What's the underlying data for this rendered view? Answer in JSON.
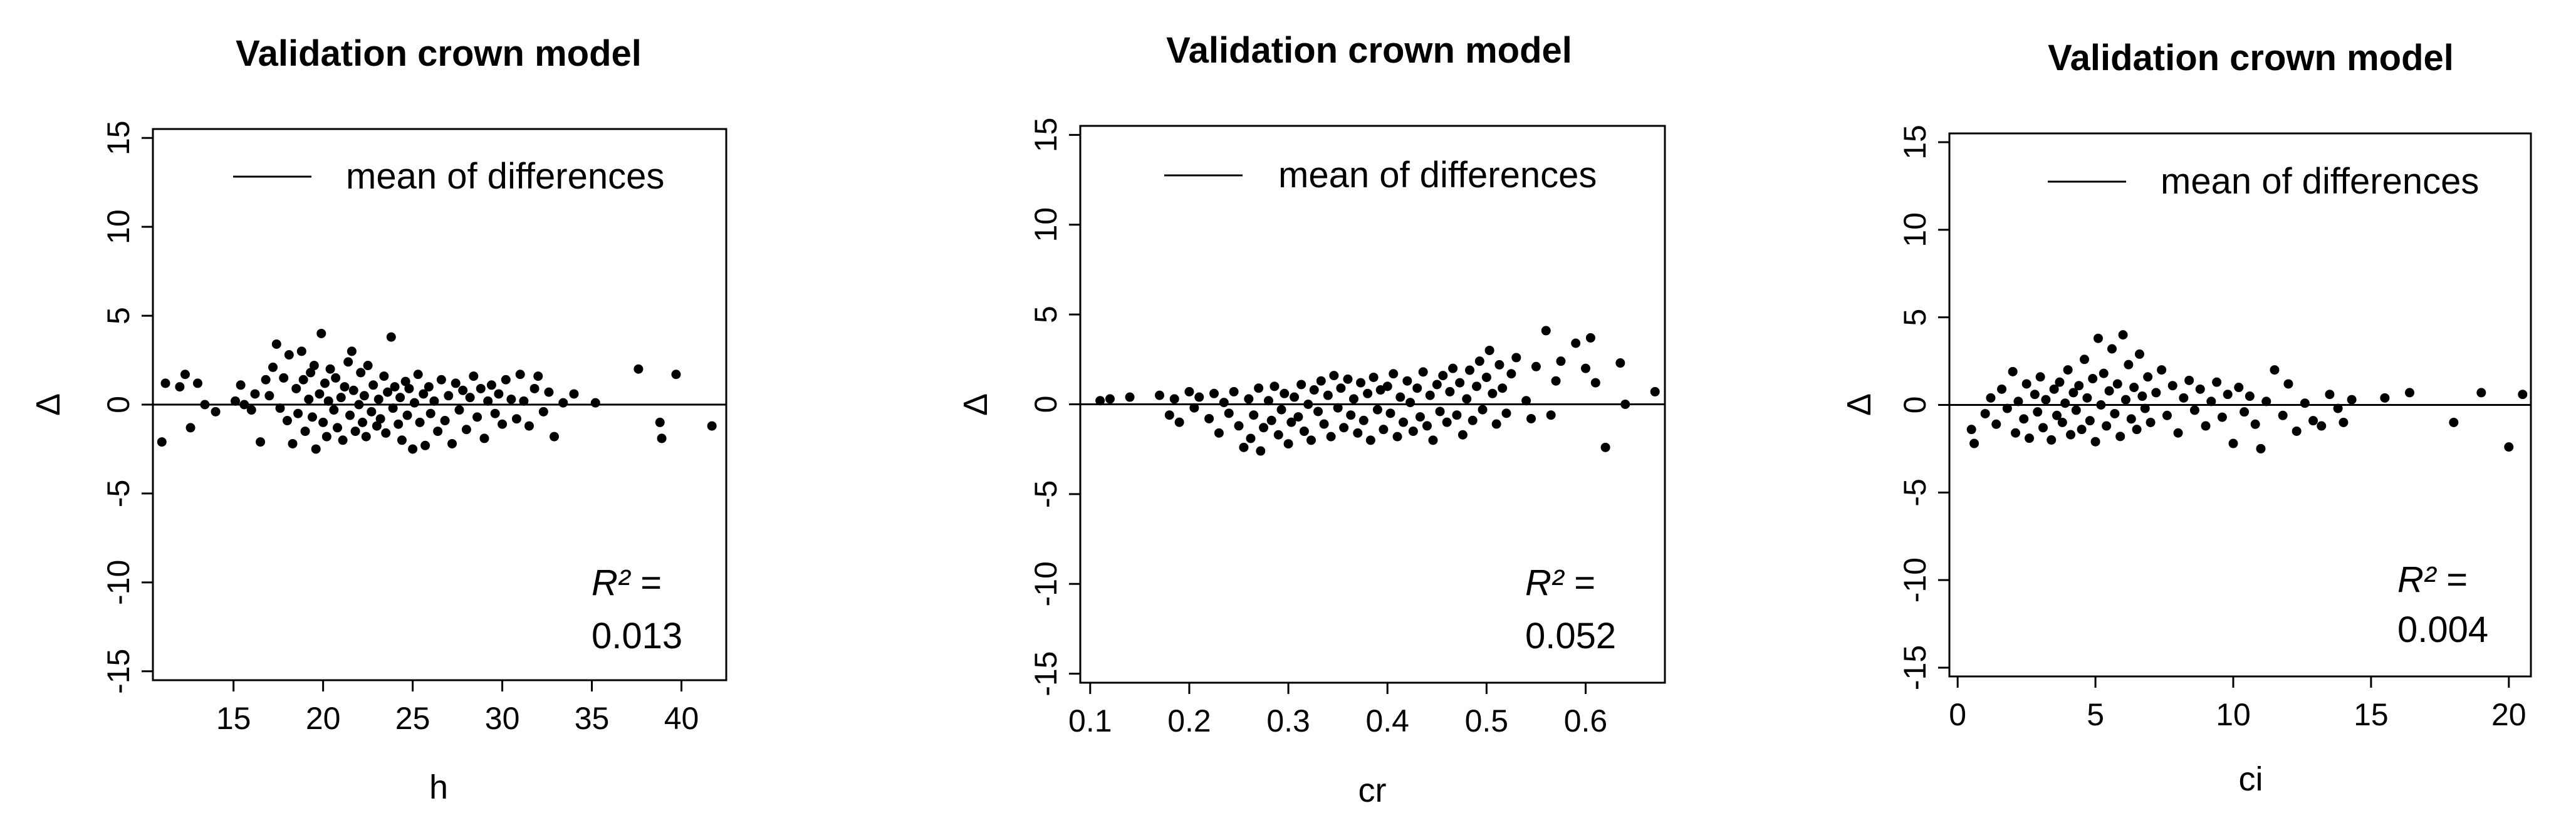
{
  "figure": {
    "ylabel_symbol": "Δ"
  },
  "chart_data": [
    {
      "type": "scatter",
      "title": "Validation crown model",
      "xlabel": "h",
      "ylabel": "Δ",
      "xlim": [
        10.5,
        42.5
      ],
      "ylim": [
        -15.5,
        15.5
      ],
      "xticks": [
        "15",
        "20",
        "25",
        "30",
        "35",
        "40"
      ],
      "yticks": [
        "-15",
        "-10",
        "-5",
        "0",
        "5",
        "10",
        "15"
      ],
      "legend": {
        "label": "mean of differences",
        "position": "top-right"
      },
      "mean_of_differences": 0,
      "r2_label": "R² =",
      "r2_value": "0.013",
      "points": [
        [
          11.2,
          1.2
        ],
        [
          11.0,
          -2.1
        ],
        [
          12.0,
          1.0
        ],
        [
          12.3,
          1.7
        ],
        [
          12.6,
          -1.3
        ],
        [
          13.0,
          1.2
        ],
        [
          13.4,
          0.0
        ],
        [
          14.0,
          -0.4
        ],
        [
          15.1,
          0.2
        ],
        [
          15.4,
          1.1
        ],
        [
          15.6,
          0.0
        ],
        [
          16.0,
          -0.3
        ],
        [
          16.2,
          0.6
        ],
        [
          16.5,
          -2.1
        ],
        [
          16.8,
          1.4
        ],
        [
          17.0,
          0.5
        ],
        [
          17.2,
          2.1
        ],
        [
          17.4,
          3.4
        ],
        [
          17.6,
          -0.2
        ],
        [
          17.8,
          1.5
        ],
        [
          18.0,
          -0.9
        ],
        [
          18.1,
          2.8
        ],
        [
          18.3,
          -2.2
        ],
        [
          18.5,
          0.9
        ],
        [
          18.6,
          -0.5
        ],
        [
          18.8,
          3.0
        ],
        [
          18.9,
          1.4
        ],
        [
          19.0,
          -1.5
        ],
        [
          19.2,
          0.3
        ],
        [
          19.3,
          1.8
        ],
        [
          19.4,
          -0.7
        ],
        [
          19.5,
          2.2
        ],
        [
          19.6,
          -2.5
        ],
        [
          19.8,
          0.6
        ],
        [
          19.9,
          4.0
        ],
        [
          20.0,
          -1.0
        ],
        [
          20.1,
          1.2
        ],
        [
          20.2,
          -1.8
        ],
        [
          20.3,
          0.2
        ],
        [
          20.4,
          2.0
        ],
        [
          20.6,
          -0.3
        ],
        [
          20.7,
          1.5
        ],
        [
          20.8,
          -1.3
        ],
        [
          21.0,
          0.4
        ],
        [
          21.1,
          -2.0
        ],
        [
          21.2,
          1.0
        ],
        [
          21.4,
          2.4
        ],
        [
          21.5,
          -0.6
        ],
        [
          21.6,
          3.0
        ],
        [
          21.7,
          0.8
        ],
        [
          21.8,
          -1.5
        ],
        [
          22.0,
          0.0
        ],
        [
          22.1,
          1.8
        ],
        [
          22.2,
          -1.0
        ],
        [
          22.3,
          0.5
        ],
        [
          22.4,
          -1.8
        ],
        [
          22.5,
          2.2
        ],
        [
          22.7,
          -0.4
        ],
        [
          22.8,
          1.1
        ],
        [
          23.0,
          -1.2
        ],
        [
          23.1,
          0.3
        ],
        [
          23.2,
          -0.8
        ],
        [
          23.4,
          1.6
        ],
        [
          23.5,
          -1.6
        ],
        [
          23.6,
          0.7
        ],
        [
          23.8,
          3.8
        ],
        [
          23.9,
          -0.2
        ],
        [
          24.0,
          1.0
        ],
        [
          24.2,
          -1.1
        ],
        [
          24.3,
          0.4
        ],
        [
          24.4,
          -2.0
        ],
        [
          24.6,
          1.3
        ],
        [
          24.7,
          -0.6
        ],
        [
          24.8,
          0.9
        ],
        [
          25.0,
          -2.5
        ],
        [
          25.1,
          0.1
        ],
        [
          25.3,
          1.7
        ],
        [
          25.4,
          -1.0
        ],
        [
          25.6,
          0.6
        ],
        [
          25.7,
          -2.3
        ],
        [
          25.9,
          1.0
        ],
        [
          26.0,
          -0.5
        ],
        [
          26.2,
          0.2
        ],
        [
          26.4,
          -1.5
        ],
        [
          26.6,
          1.4
        ],
        [
          26.8,
          -0.9
        ],
        [
          27.0,
          0.5
        ],
        [
          27.2,
          -2.2
        ],
        [
          27.4,
          1.2
        ],
        [
          27.6,
          -0.3
        ],
        [
          27.8,
          0.8
        ],
        [
          28.0,
          -1.4
        ],
        [
          28.2,
          0.4
        ],
        [
          28.4,
          1.6
        ],
        [
          28.6,
          -0.7
        ],
        [
          28.8,
          0.9
        ],
        [
          29.0,
          -1.9
        ],
        [
          29.2,
          0.2
        ],
        [
          29.4,
          1.1
        ],
        [
          29.6,
          -0.5
        ],
        [
          29.8,
          0.6
        ],
        [
          30.0,
          -1.1
        ],
        [
          30.2,
          1.4
        ],
        [
          30.5,
          0.3
        ],
        [
          30.8,
          -0.8
        ],
        [
          31.0,
          1.7
        ],
        [
          31.2,
          0.2
        ],
        [
          31.5,
          -1.2
        ],
        [
          31.8,
          0.9
        ],
        [
          32.0,
          1.6
        ],
        [
          32.3,
          -0.4
        ],
        [
          32.6,
          0.7
        ],
        [
          32.9,
          -1.8
        ],
        [
          33.4,
          0.1
        ],
        [
          34.0,
          0.6
        ],
        [
          35.2,
          0.1
        ],
        [
          37.6,
          2.0
        ],
        [
          38.8,
          -1.0
        ],
        [
          38.9,
          -1.9
        ],
        [
          39.7,
          1.7
        ],
        [
          41.7,
          -1.2
        ]
      ]
    },
    {
      "type": "scatter",
      "title": "Validation crown model",
      "xlabel": "cr",
      "ylabel": "Δ",
      "xlim": [
        0.09,
        0.68
      ],
      "ylim": [
        -15.5,
        15.5
      ],
      "xticks": [
        "0.1",
        "0.2",
        "0.3",
        "0.4",
        "0.5",
        "0.6"
      ],
      "yticks": [
        "-15",
        "-10",
        "-5",
        "0",
        "5",
        "10",
        "15"
      ],
      "legend": {
        "label": "mean of differences",
        "position": "top-right"
      },
      "mean_of_differences": 0,
      "r2_label": "R² =",
      "r2_value": "0.052",
      "points": [
        [
          0.11,
          0.2
        ],
        [
          0.12,
          0.3
        ],
        [
          0.14,
          0.4
        ],
        [
          0.17,
          0.5
        ],
        [
          0.18,
          -0.6
        ],
        [
          0.185,
          0.3
        ],
        [
          0.19,
          -1.0
        ],
        [
          0.2,
          0.7
        ],
        [
          0.205,
          -0.2
        ],
        [
          0.21,
          0.4
        ],
        [
          0.22,
          -0.8
        ],
        [
          0.225,
          0.6
        ],
        [
          0.23,
          -1.6
        ],
        [
          0.235,
          0.1
        ],
        [
          0.24,
          -0.5
        ],
        [
          0.245,
          0.7
        ],
        [
          0.25,
          -1.2
        ],
        [
          0.255,
          -2.4
        ],
        [
          0.26,
          0.3
        ],
        [
          0.262,
          -1.9
        ],
        [
          0.265,
          -0.6
        ],
        [
          0.27,
          0.9
        ],
        [
          0.272,
          -2.6
        ],
        [
          0.275,
          -1.3
        ],
        [
          0.28,
          0.2
        ],
        [
          0.283,
          -0.9
        ],
        [
          0.286,
          1.0
        ],
        [
          0.29,
          -1.7
        ],
        [
          0.293,
          -0.3
        ],
        [
          0.296,
          0.6
        ],
        [
          0.3,
          -2.2
        ],
        [
          0.303,
          -1.0
        ],
        [
          0.306,
          0.4
        ],
        [
          0.31,
          -0.7
        ],
        [
          0.313,
          1.1
        ],
        [
          0.316,
          -1.5
        ],
        [
          0.32,
          0.0
        ],
        [
          0.323,
          -2.0
        ],
        [
          0.326,
          0.8
        ],
        [
          0.33,
          -0.4
        ],
        [
          0.333,
          1.3
        ],
        [
          0.336,
          -1.1
        ],
        [
          0.34,
          0.5
        ],
        [
          0.343,
          -1.8
        ],
        [
          0.346,
          1.6
        ],
        [
          0.35,
          -0.2
        ],
        [
          0.353,
          0.9
        ],
        [
          0.356,
          -1.3
        ],
        [
          0.36,
          1.4
        ],
        [
          0.363,
          -0.6
        ],
        [
          0.366,
          0.3
        ],
        [
          0.37,
          -1.6
        ],
        [
          0.373,
          1.2
        ],
        [
          0.376,
          -0.9
        ],
        [
          0.38,
          0.6
        ],
        [
          0.383,
          -2.0
        ],
        [
          0.386,
          1.5
        ],
        [
          0.39,
          -0.3
        ],
        [
          0.393,
          0.8
        ],
        [
          0.396,
          -1.4
        ],
        [
          0.4,
          1.0
        ],
        [
          0.403,
          -0.5
        ],
        [
          0.406,
          1.7
        ],
        [
          0.41,
          -1.8
        ],
        [
          0.413,
          0.4
        ],
        [
          0.416,
          -1.0
        ],
        [
          0.42,
          1.3
        ],
        [
          0.423,
          0.1
        ],
        [
          0.426,
          -1.5
        ],
        [
          0.43,
          0.9
        ],
        [
          0.433,
          -0.7
        ],
        [
          0.436,
          1.8
        ],
        [
          0.44,
          -1.2
        ],
        [
          0.443,
          0.5
        ],
        [
          0.446,
          -2.0
        ],
        [
          0.45,
          1.1
        ],
        [
          0.453,
          -0.4
        ],
        [
          0.456,
          1.6
        ],
        [
          0.46,
          -1.0
        ],
        [
          0.463,
          0.7
        ],
        [
          0.466,
          2.0
        ],
        [
          0.47,
          -0.6
        ],
        [
          0.473,
          1.2
        ],
        [
          0.476,
          -1.7
        ],
        [
          0.48,
          0.3
        ],
        [
          0.483,
          1.9
        ],
        [
          0.486,
          -0.9
        ],
        [
          0.49,
          1.0
        ],
        [
          0.493,
          2.4
        ],
        [
          0.496,
          -0.3
        ],
        [
          0.5,
          1.5
        ],
        [
          0.503,
          3.0
        ],
        [
          0.506,
          0.6
        ],
        [
          0.51,
          -1.1
        ],
        [
          0.513,
          2.2
        ],
        [
          0.516,
          0.9
        ],
        [
          0.52,
          -0.5
        ],
        [
          0.525,
          1.7
        ],
        [
          0.53,
          2.6
        ],
        [
          0.54,
          0.2
        ],
        [
          0.545,
          -0.8
        ],
        [
          0.55,
          2.1
        ],
        [
          0.56,
          4.1
        ],
        [
          0.565,
          -0.6
        ],
        [
          0.57,
          1.3
        ],
        [
          0.575,
          2.4
        ],
        [
          0.59,
          3.4
        ],
        [
          0.6,
          2.0
        ],
        [
          0.605,
          3.7
        ],
        [
          0.61,
          1.2
        ],
        [
          0.62,
          -2.4
        ],
        [
          0.635,
          2.3
        ],
        [
          0.64,
          0.0
        ],
        [
          0.67,
          0.7
        ]
      ]
    },
    {
      "type": "scatter",
      "title": "Validation crown model",
      "xlabel": "ci",
      "ylabel": "Δ",
      "xlim": [
        -0.3,
        20.8
      ],
      "ylim": [
        -15.5,
        15.5
      ],
      "xticks": [
        "0",
        "5",
        "10",
        "15",
        "20"
      ],
      "yticks": [
        "-15",
        "-10",
        "-5",
        "0",
        "5",
        "10",
        "15"
      ],
      "legend": {
        "label": "mean of differences",
        "position": "top-right"
      },
      "mean_of_differences": 0,
      "r2_label": "R² =",
      "r2_value": "0.004",
      "points": [
        [
          0.5,
          -1.4
        ],
        [
          0.6,
          -2.2
        ],
        [
          1.0,
          -0.5
        ],
        [
          1.2,
          0.4
        ],
        [
          1.4,
          -1.1
        ],
        [
          1.6,
          0.9
        ],
        [
          1.8,
          -0.2
        ],
        [
          2.0,
          1.9
        ],
        [
          2.1,
          -1.6
        ],
        [
          2.2,
          0.2
        ],
        [
          2.4,
          -0.8
        ],
        [
          2.5,
          1.2
        ],
        [
          2.6,
          -1.9
        ],
        [
          2.8,
          0.6
        ],
        [
          2.9,
          -0.4
        ],
        [
          3.0,
          1.6
        ],
        [
          3.1,
          -1.3
        ],
        [
          3.2,
          0.3
        ],
        [
          3.4,
          -2.0
        ],
        [
          3.5,
          0.9
        ],
        [
          3.6,
          -0.6
        ],
        [
          3.7,
          1.3
        ],
        [
          3.8,
          -1.0
        ],
        [
          3.9,
          0.1
        ],
        [
          4.0,
          2.0
        ],
        [
          4.1,
          -1.7
        ],
        [
          4.2,
          0.7
        ],
        [
          4.3,
          -0.3
        ],
        [
          4.4,
          1.1
        ],
        [
          4.5,
          -1.4
        ],
        [
          4.6,
          2.6
        ],
        [
          4.7,
          0.4
        ],
        [
          4.8,
          -0.9
        ],
        [
          4.9,
          1.5
        ],
        [
          5.0,
          -2.1
        ],
        [
          5.1,
          3.8
        ],
        [
          5.2,
          0.0
        ],
        [
          5.3,
          1.8
        ],
        [
          5.4,
          -1.2
        ],
        [
          5.5,
          0.8
        ],
        [
          5.6,
          3.2
        ],
        [
          5.7,
          -0.5
        ],
        [
          5.8,
          1.2
        ],
        [
          5.9,
          -1.8
        ],
        [
          6.0,
          4.0
        ],
        [
          6.1,
          0.3
        ],
        [
          6.2,
          2.3
        ],
        [
          6.3,
          -0.8
        ],
        [
          6.4,
          1.0
        ],
        [
          6.5,
          -1.4
        ],
        [
          6.6,
          2.9
        ],
        [
          6.7,
          0.5
        ],
        [
          6.8,
          -0.2
        ],
        [
          6.9,
          1.6
        ],
        [
          7.0,
          -1.0
        ],
        [
          7.2,
          0.7
        ],
        [
          7.4,
          2.0
        ],
        [
          7.6,
          -0.6
        ],
        [
          7.8,
          1.1
        ],
        [
          8.0,
          -1.6
        ],
        [
          8.2,
          0.4
        ],
        [
          8.4,
          1.4
        ],
        [
          8.6,
          -0.3
        ],
        [
          8.8,
          0.9
        ],
        [
          9.0,
          -1.2
        ],
        [
          9.2,
          0.2
        ],
        [
          9.4,
          1.3
        ],
        [
          9.6,
          -0.7
        ],
        [
          9.8,
          0.6
        ],
        [
          10.0,
          -2.2
        ],
        [
          10.2,
          1.0
        ],
        [
          10.4,
          -0.4
        ],
        [
          10.6,
          0.5
        ],
        [
          10.8,
          -1.1
        ],
        [
          11.0,
          -2.5
        ],
        [
          11.2,
          0.2
        ],
        [
          11.5,
          2.0
        ],
        [
          11.8,
          -0.6
        ],
        [
          12.0,
          1.2
        ],
        [
          12.3,
          -1.5
        ],
        [
          12.6,
          0.1
        ],
        [
          12.9,
          -0.9
        ],
        [
          13.2,
          -1.2
        ],
        [
          13.5,
          0.6
        ],
        [
          13.8,
          -0.2
        ],
        [
          14.0,
          -1.0
        ],
        [
          14.3,
          0.3
        ],
        [
          15.5,
          0.4
        ],
        [
          16.4,
          0.7
        ],
        [
          18.0,
          -1.0
        ],
        [
          19.0,
          0.7
        ],
        [
          20.0,
          -2.4
        ],
        [
          20.5,
          0.6
        ]
      ]
    }
  ]
}
